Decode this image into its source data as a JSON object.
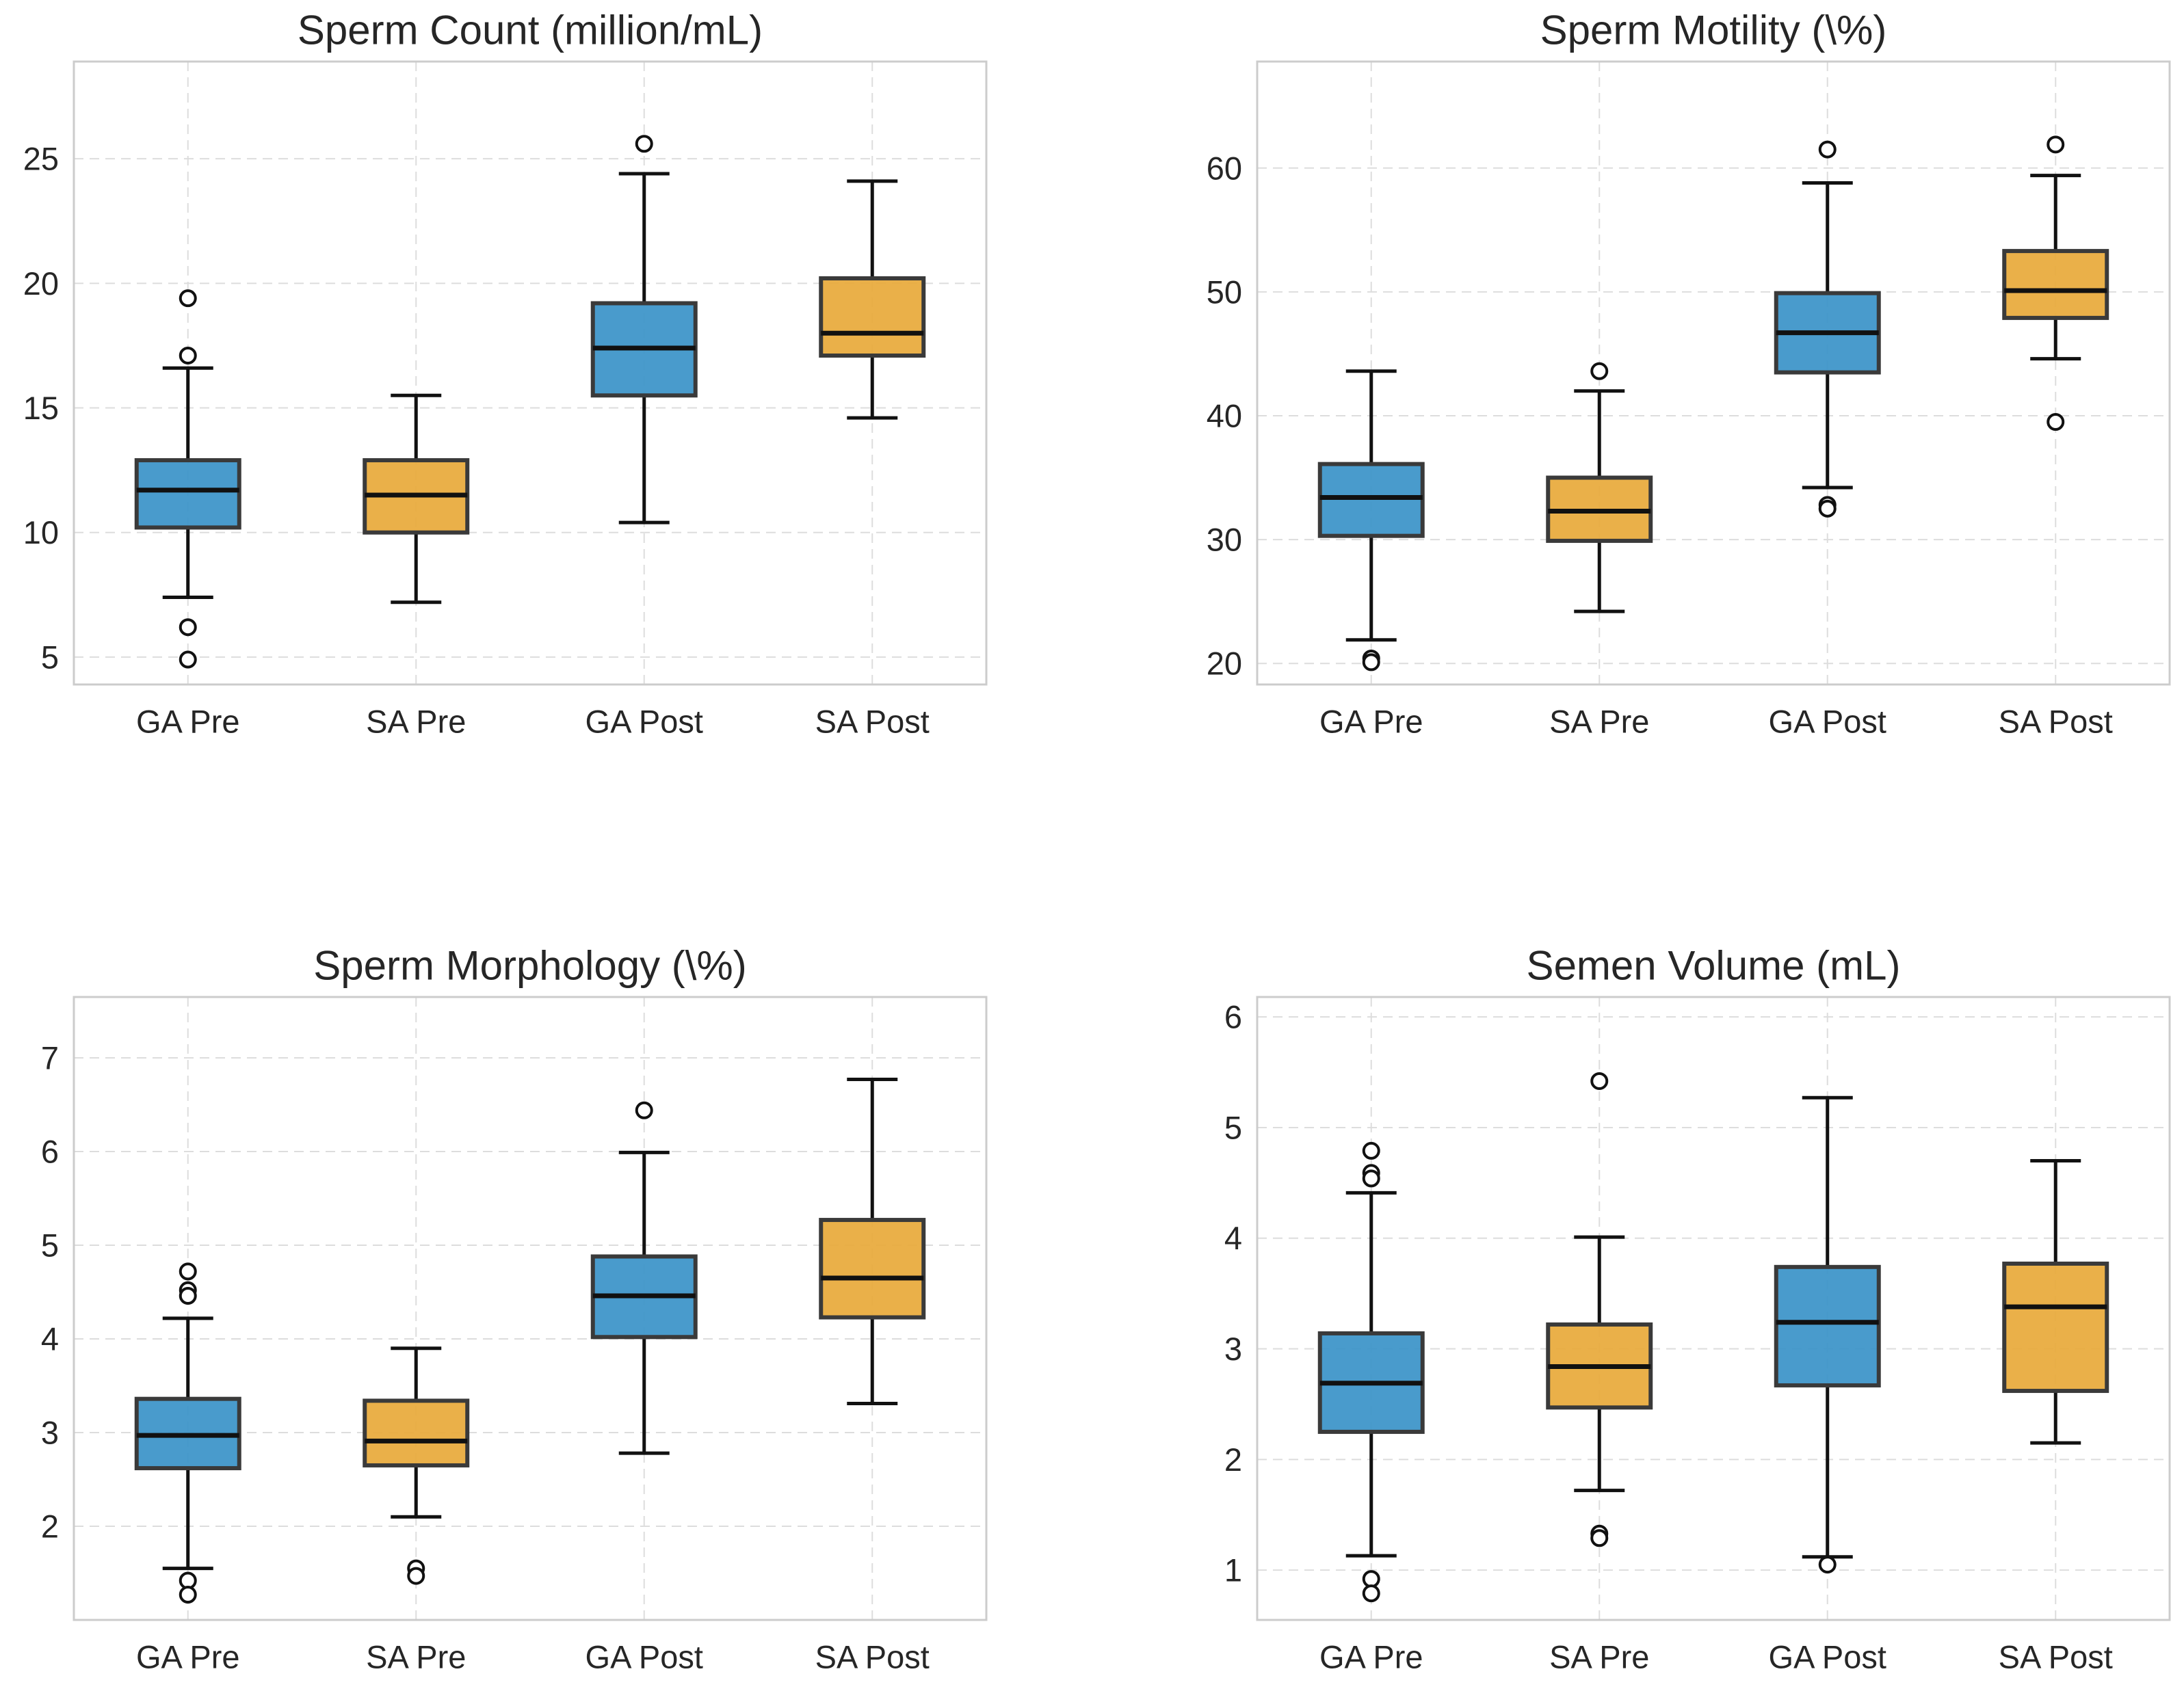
{
  "figure": {
    "layout": "2x2 grid of box plots",
    "colors": {
      "ga": "#3a93c8",
      "sa": "#e8a93a",
      "box_edge": "#3a3a3a",
      "median": "#111111",
      "whisker": "#111111",
      "grid": "#dddddd",
      "frame": "#cccccc"
    }
  },
  "chart_data": [
    {
      "type": "box",
      "title": "Sperm Count (million/mL)",
      "categories": [
        "GA Pre",
        "SA Pre",
        "GA Post",
        "SA Post"
      ],
      "groups": [
        "ga",
        "sa",
        "ga",
        "sa"
      ],
      "ylim": [
        3.9,
        28.9
      ],
      "yticks": [
        5,
        10,
        15,
        20,
        25
      ],
      "ytick_labels": [
        "5",
        "10",
        "15",
        "20",
        "25"
      ],
      "boxes": [
        {
          "min": 7.4,
          "q1": 10.2,
          "median": 11.7,
          "q3": 12.9,
          "max": 16.6,
          "outliers": [
            19.4,
            17.1,
            6.2,
            4.9
          ]
        },
        {
          "min": 7.2,
          "q1": 10.0,
          "median": 11.5,
          "q3": 12.9,
          "max": 15.5,
          "outliers": []
        },
        {
          "min": 10.4,
          "q1": 15.5,
          "median": 17.4,
          "q3": 19.2,
          "max": 24.4,
          "outliers": [
            25.6
          ]
        },
        {
          "min": 14.6,
          "q1": 17.1,
          "median": 18.0,
          "q3": 20.2,
          "max": 24.1,
          "outliers": []
        }
      ]
    },
    {
      "type": "box",
      "title": "Sperm Motility (\\%)",
      "categories": [
        "GA Pre",
        "SA Pre",
        "GA Post",
        "SA Post"
      ],
      "groups": [
        "ga",
        "sa",
        "ga",
        "sa"
      ],
      "ylim": [
        18.3,
        68.6
      ],
      "yticks": [
        20,
        30,
        40,
        50,
        60
      ],
      "ytick_labels": [
        "20",
        "30",
        "40",
        "50",
        "60"
      ],
      "boxes": [
        {
          "min": 21.9,
          "q1": 30.3,
          "median": 33.4,
          "q3": 36.1,
          "max": 43.6,
          "outliers": [
            20.4,
            20.1
          ]
        },
        {
          "min": 24.2,
          "q1": 29.9,
          "median": 32.3,
          "q3": 35.0,
          "max": 42.0,
          "outliers": [
            43.6
          ]
        },
        {
          "min": 34.2,
          "q1": 43.5,
          "median": 46.7,
          "q3": 49.9,
          "max": 58.8,
          "outliers": [
            61.5,
            32.8,
            32.5
          ]
        },
        {
          "min": 44.6,
          "q1": 47.9,
          "median": 50.1,
          "q3": 53.3,
          "max": 59.4,
          "outliers": [
            61.9,
            39.5
          ]
        }
      ]
    },
    {
      "type": "box",
      "title": "Sperm Morphology (\\%)",
      "categories": [
        "GA Pre",
        "SA Pre",
        "GA Post",
        "SA Post"
      ],
      "groups": [
        "ga",
        "sa",
        "ga",
        "sa"
      ],
      "ylim": [
        1.0,
        7.65
      ],
      "yticks": [
        2,
        3,
        4,
        5,
        6,
        7
      ],
      "ytick_labels": [
        "2",
        "3",
        "4",
        "5",
        "6",
        "7"
      ],
      "boxes": [
        {
          "min": 1.55,
          "q1": 2.62,
          "median": 2.97,
          "q3": 3.36,
          "max": 4.22,
          "outliers": [
            4.72,
            4.52,
            4.46,
            1.42,
            1.27
          ]
        },
        {
          "min": 2.1,
          "q1": 2.65,
          "median": 2.91,
          "q3": 3.34,
          "max": 3.9,
          "outliers": [
            1.55,
            1.47
          ]
        },
        {
          "min": 2.78,
          "q1": 4.02,
          "median": 4.46,
          "q3": 4.88,
          "max": 5.99,
          "outliers": [
            6.44
          ]
        },
        {
          "min": 3.31,
          "q1": 4.23,
          "median": 4.65,
          "q3": 5.27,
          "max": 6.77,
          "outliers": []
        }
      ]
    },
    {
      "type": "box",
      "title": "Semen Volume (mL)",
      "categories": [
        "GA Pre",
        "SA Pre",
        "GA Post",
        "SA Post"
      ],
      "groups": [
        "ga",
        "sa",
        "ga",
        "sa"
      ],
      "ylim": [
        0.55,
        6.18
      ],
      "yticks": [
        1,
        2,
        3,
        4,
        5,
        6
      ],
      "ytick_labels": [
        "1",
        "2",
        "3",
        "4",
        "5",
        "6"
      ],
      "boxes": [
        {
          "min": 1.13,
          "q1": 2.25,
          "median": 2.69,
          "q3": 3.14,
          "max": 4.41,
          "outliers": [
            4.79,
            4.59,
            4.54,
            0.92,
            0.79
          ]
        },
        {
          "min": 1.72,
          "q1": 2.47,
          "median": 2.84,
          "q3": 3.22,
          "max": 4.01,
          "outliers": [
            5.42,
            1.33,
            1.29
          ]
        },
        {
          "min": 1.12,
          "q1": 2.67,
          "median": 3.24,
          "q3": 3.74,
          "max": 5.27,
          "outliers": [
            1.05
          ]
        },
        {
          "min": 2.15,
          "q1": 2.62,
          "median": 3.38,
          "q3": 3.77,
          "max": 4.7,
          "outliers": []
        }
      ]
    }
  ]
}
